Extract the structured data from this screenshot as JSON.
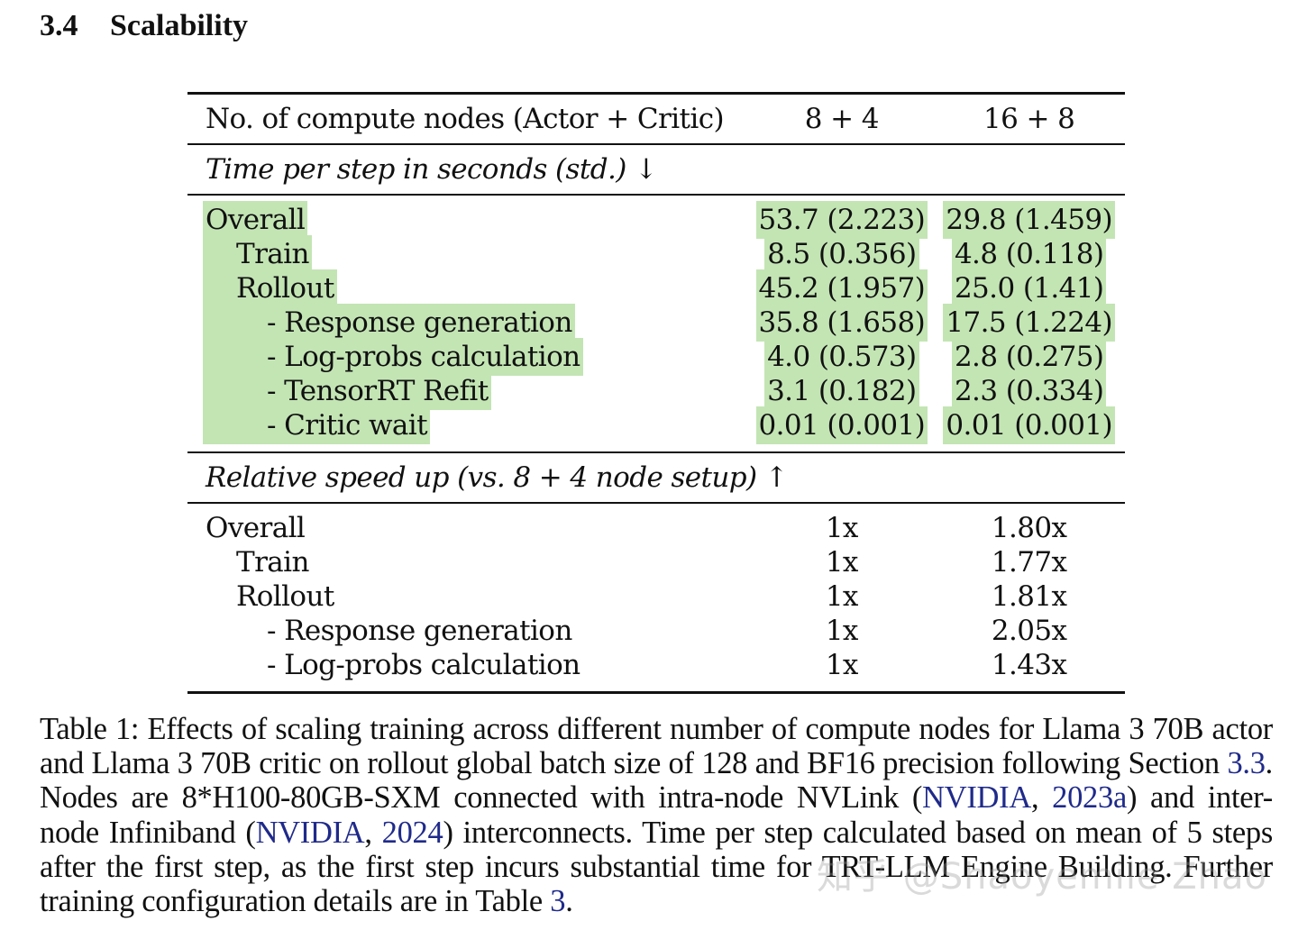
{
  "section": {
    "number": "3.4",
    "title": "Scalability"
  },
  "table": {
    "header": [
      "No. of compute nodes (Actor + Critic)",
      "8 + 4",
      "16 + 8"
    ],
    "group1": {
      "title": "Time per step in seconds (std.) ↓",
      "rows": [
        {
          "label": "Overall",
          "a": "53.7 (2.223)",
          "b": "29.8 (1.459)"
        },
        {
          "label": "Train",
          "a": "8.5 (0.356)",
          "b": "4.8 (0.118)"
        },
        {
          "label": "Rollout",
          "a": "45.2 (1.957)",
          "b": "25.0 (1.41)"
        },
        {
          "label": "- Response generation",
          "a": "35.8 (1.658)",
          "b": "17.5 (1.224)"
        },
        {
          "label": "- Log-probs calculation",
          "a": "4.0 (0.573)",
          "b": "2.8 (0.275)"
        },
        {
          "label": "- TensorRT Refit",
          "a": "3.1 (0.182)",
          "b": "2.3 (0.334)"
        },
        {
          "label": "- Critic wait",
          "a": "0.01 (0.001)",
          "b": "0.01 (0.001)"
        }
      ]
    },
    "group2": {
      "title": "Relative speed up (vs. 8 + 4 node setup) ↑",
      "rows": [
        {
          "label": "Overall",
          "a": "1x",
          "b": "1.80x"
        },
        {
          "label": "Train",
          "a": "1x",
          "b": "1.77x"
        },
        {
          "label": "Rollout",
          "a": "1x",
          "b": "1.81x"
        },
        {
          "label": "- Response generation",
          "a": "1x",
          "b": "2.05x"
        },
        {
          "label": "- Log-probs calculation",
          "a": "1x",
          "b": "1.43x"
        }
      ]
    }
  },
  "caption": {
    "t1": "Table 1: Effects of scaling training across different number of compute nodes for Llama 3 70B actor and Llama 3 70B critic on rollout global batch size of 128 and BF16 precision following Section ",
    "ref_section": "3.3",
    "t2": ". Nodes are 8*H100-80GB-SXM connected with intra-node NVLink (",
    "ref_nvidia1": "NVIDIA",
    "sep1": ", ",
    "ref_year1": "2023a",
    "t3": ") and inter-node Infiniband (",
    "ref_nvidia2": "NVIDIA",
    "sep2": ", ",
    "ref_year2": "2024",
    "t4": ") interconnects. Time per step calculated based on mean of 5 steps after the first step, as the first step incurs substantial time for TRT-LLM Engine Building. Further training configuration details are in Table ",
    "ref_table": "3",
    "t5": "."
  },
  "watermark": "知乎 @Shaoyemile Zhao",
  "colors": {
    "highlight": "#c3e5b4",
    "link": "#1f2a8a"
  }
}
